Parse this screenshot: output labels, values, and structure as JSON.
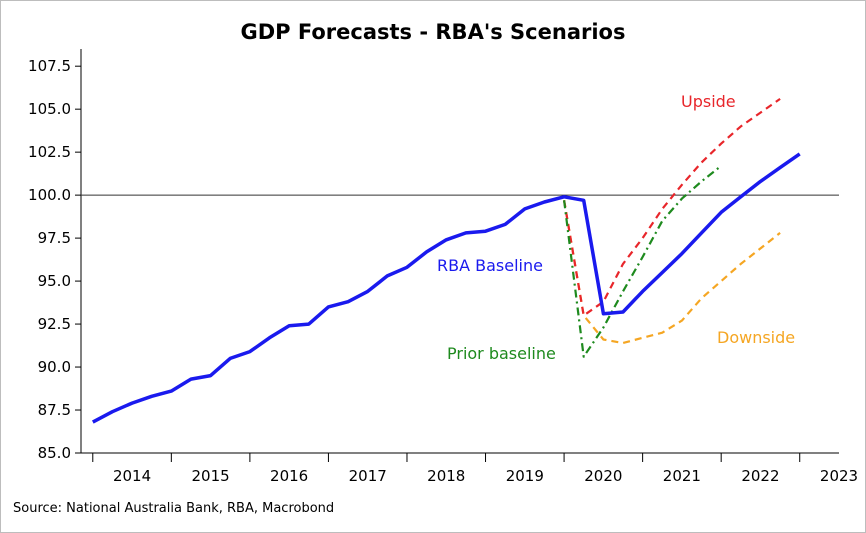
{
  "chart_data": {
    "type": "line",
    "title": "GDP Forecasts - RBA's Scenarios",
    "source": "Source: National Australia Bank, RBA, Macrobond",
    "ylim": [
      85.0,
      108.5
    ],
    "yticks": [
      "85.0",
      "87.5",
      "90.0",
      "92.5",
      "95.0",
      "97.5",
      "100.0",
      "102.5",
      "105.0",
      "107.5"
    ],
    "xlim": [
      2013.85,
      2023.5
    ],
    "xtick_labels": [
      "2014",
      "2015",
      "2016",
      "2017",
      "2018",
      "2019",
      "2020",
      "2021",
      "2022",
      "2023"
    ],
    "reference_line": 100.0,
    "series": [
      {
        "name": "Downside",
        "color": "#f5a623",
        "style": "dashed",
        "points": [
          [
            2020.0,
            99.7
          ],
          [
            2020.25,
            93.0
          ],
          [
            2020.5,
            91.6
          ],
          [
            2020.75,
            91.4
          ],
          [
            2021.0,
            91.7
          ],
          [
            2021.25,
            92.0
          ],
          [
            2021.5,
            92.7
          ],
          [
            2021.75,
            94.0
          ],
          [
            2022.0,
            95.0
          ],
          [
            2022.25,
            96.0
          ],
          [
            2022.5,
            96.9
          ],
          [
            2022.75,
            97.8
          ]
        ]
      },
      {
        "name": "Upside",
        "color": "#e8262b",
        "style": "dashed",
        "points": [
          [
            2020.0,
            99.7
          ],
          [
            2020.25,
            93.0
          ],
          [
            2020.5,
            93.8
          ],
          [
            2020.75,
            96.0
          ],
          [
            2021.0,
            97.5
          ],
          [
            2021.25,
            99.2
          ],
          [
            2021.5,
            100.6
          ],
          [
            2021.75,
            101.9
          ],
          [
            2022.0,
            103.0
          ],
          [
            2022.25,
            104.0
          ],
          [
            2022.5,
            104.8
          ],
          [
            2022.75,
            105.6
          ]
        ]
      },
      {
        "name": "Prior baseline",
        "color": "#1e8a1e",
        "style": "dashdot",
        "points": [
          [
            2020.0,
            99.7
          ],
          [
            2020.25,
            90.6
          ],
          [
            2020.5,
            92.3
          ],
          [
            2020.75,
            94.4
          ],
          [
            2021.0,
            96.4
          ],
          [
            2021.25,
            98.5
          ],
          [
            2021.5,
            99.8
          ],
          [
            2021.75,
            100.8
          ],
          [
            2022.0,
            101.7
          ]
        ]
      },
      {
        "name": "RBA Baseline",
        "color": "#1a1aee",
        "style": "solid",
        "points": [
          [
            2014.0,
            86.8
          ],
          [
            2014.25,
            87.4
          ],
          [
            2014.5,
            87.9
          ],
          [
            2014.75,
            88.3
          ],
          [
            2015.0,
            88.6
          ],
          [
            2015.25,
            89.3
          ],
          [
            2015.5,
            89.5
          ],
          [
            2015.75,
            90.5
          ],
          [
            2016.0,
            90.9
          ],
          [
            2016.25,
            91.7
          ],
          [
            2016.5,
            92.4
          ],
          [
            2016.75,
            92.5
          ],
          [
            2017.0,
            93.5
          ],
          [
            2017.25,
            93.8
          ],
          [
            2017.5,
            94.4
          ],
          [
            2017.75,
            95.3
          ],
          [
            2018.0,
            95.8
          ],
          [
            2018.25,
            96.7
          ],
          [
            2018.5,
            97.4
          ],
          [
            2018.75,
            97.8
          ],
          [
            2019.0,
            97.9
          ],
          [
            2019.25,
            98.3
          ],
          [
            2019.5,
            99.2
          ],
          [
            2019.75,
            99.6
          ],
          [
            2020.0,
            99.9
          ],
          [
            2020.25,
            99.7
          ],
          [
            2020.5,
            93.1
          ],
          [
            2020.75,
            93.2
          ],
          [
            2021.0,
            94.4
          ],
          [
            2021.25,
            95.5
          ],
          [
            2021.5,
            96.6
          ],
          [
            2021.75,
            97.8
          ],
          [
            2022.0,
            99.0
          ],
          [
            2022.25,
            99.9
          ],
          [
            2022.5,
            100.8
          ],
          [
            2022.75,
            101.6
          ],
          [
            2023.0,
            102.4
          ]
        ]
      }
    ],
    "annotations": [
      {
        "text": "Upside",
        "color": "#e8262b"
      },
      {
        "text": "RBA Baseline",
        "color": "#1a1aee"
      },
      {
        "text": "Downside",
        "color": "#f5a623"
      },
      {
        "text": "Prior baseline",
        "color": "#1e8a1e"
      }
    ]
  }
}
